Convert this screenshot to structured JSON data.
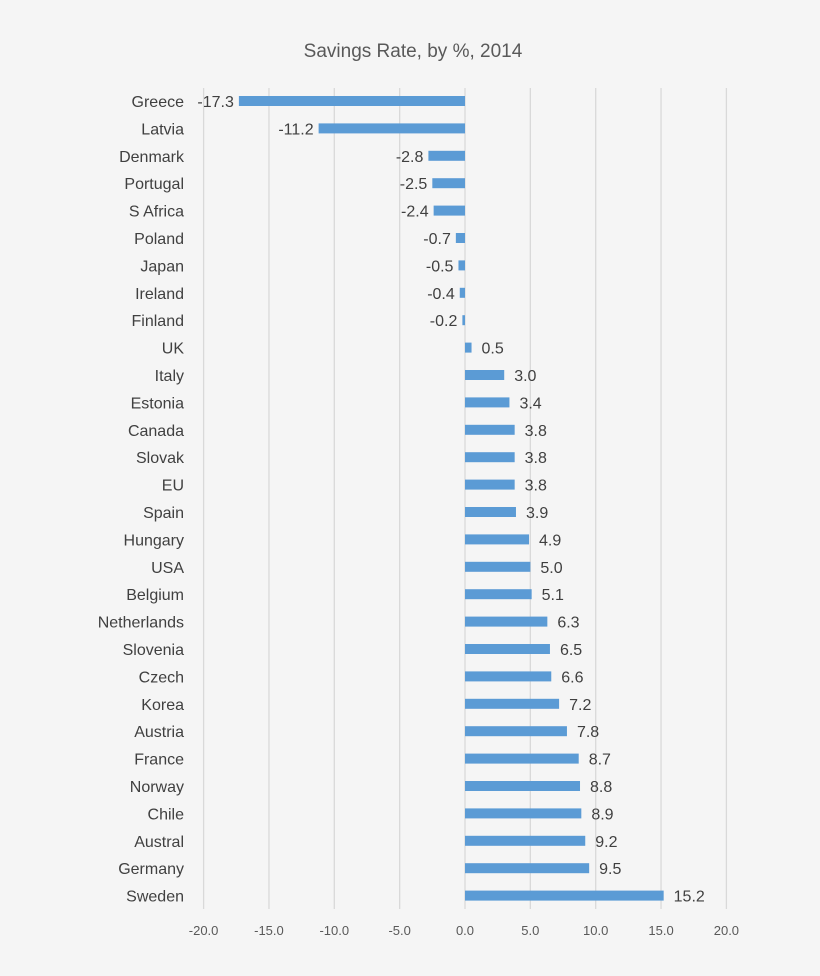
{
  "chart_data": {
    "type": "bar",
    "orientation": "horizontal",
    "title": "Savings Rate, by %, 2014",
    "xlabel": "",
    "ylabel": "",
    "xlim": [
      -20,
      20
    ],
    "x_ticks": [
      "-20.0",
      "-15.0",
      "-10.0",
      "-5.0",
      "0.0",
      "5.0",
      "10.0",
      "15.0",
      "20.0"
    ],
    "grid": "vertical",
    "legend": "none",
    "bar_color": "#5b9bd5",
    "categories": [
      "Greece",
      "Latvia",
      "Denmark",
      "Portugal",
      "S Africa",
      "Poland",
      "Japan",
      "Ireland",
      "Finland",
      "UK",
      "Italy",
      "Estonia",
      "Canada",
      "Slovak",
      "EU",
      "Spain",
      "Hungary",
      "USA",
      "Belgium",
      "Netherlands",
      "Slovenia",
      "Czech",
      "Korea",
      "Austria",
      "France",
      "Norway",
      "Chile",
      "Austral",
      "Germany",
      "Sweden"
    ],
    "values": [
      -17.3,
      -11.2,
      -2.8,
      -2.5,
      -2.4,
      -0.7,
      -0.5,
      -0.4,
      -0.2,
      0.5,
      3.0,
      3.4,
      3.8,
      3.8,
      3.8,
      3.9,
      4.9,
      5.0,
      5.1,
      6.3,
      6.5,
      6.6,
      7.2,
      7.8,
      8.7,
      8.8,
      8.9,
      9.2,
      9.5,
      15.2
    ],
    "data_labels": [
      "-17.3",
      "-11.2",
      "-2.8",
      "-2.5",
      "-2.4",
      "-0.7",
      "-0.5",
      "-0.4",
      "-0.2",
      "0.5",
      "3.0",
      "3.4",
      "3.8",
      "3.8",
      "3.8",
      "3.9",
      "4.9",
      "5.0",
      "5.1",
      "6.3",
      "6.5",
      "6.6",
      "7.2",
      "7.8",
      "8.7",
      "8.8",
      "8.9",
      "9.2",
      "9.5",
      "15.2"
    ]
  }
}
